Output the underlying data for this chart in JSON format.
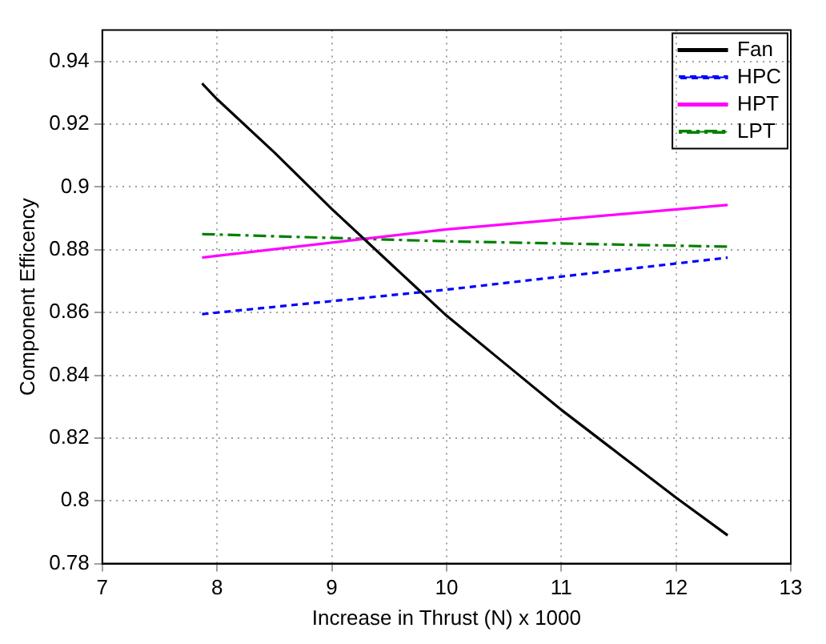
{
  "chart_data": {
    "type": "line",
    "xlabel": "Increase in Thrust (N) x 1000",
    "ylabel": "Component Efficency",
    "xlim": [
      7,
      13
    ],
    "ylim": [
      0.78,
      0.95
    ],
    "xticks": [
      7,
      8,
      9,
      10,
      11,
      12,
      13
    ],
    "yticks": [
      0.78,
      0.8,
      0.82,
      0.84,
      0.86,
      0.88,
      0.9,
      0.92,
      0.94
    ],
    "grid": true,
    "legend": "top right",
    "marker": "none",
    "series": [
      {
        "name": "Fan",
        "color": "#000000",
        "line_style": "solid",
        "x": [
          7.87,
          8,
          8.5,
          9,
          9.5,
          10,
          10.5,
          11,
          11.5,
          12,
          12.45
        ],
        "values": [
          0.933,
          0.928,
          0.911,
          0.893,
          0.876,
          0.859,
          0.844,
          0.829,
          0.815,
          0.801,
          0.789
        ]
      },
      {
        "name": "HPC",
        "color": "#0000ff",
        "line_style": "dashed",
        "x": [
          7.87,
          10,
          12.45
        ],
        "values": [
          0.8595,
          0.8673,
          0.8775
        ]
      },
      {
        "name": "HPT",
        "color": "#ff00ff",
        "line_style": "solid",
        "x": [
          7.87,
          10,
          12.45
        ],
        "values": [
          0.8775,
          0.8865,
          0.8943
        ]
      },
      {
        "name": "LPT",
        "color": "#008000",
        "line_style": "dashdot",
        "x": [
          7.87,
          10,
          12.45
        ],
        "values": [
          0.885,
          0.8827,
          0.881
        ]
      }
    ]
  }
}
